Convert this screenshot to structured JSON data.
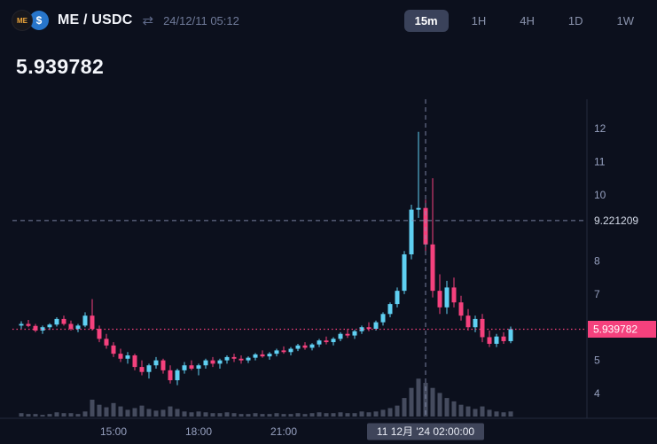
{
  "header": {
    "pair": "ME / USDC",
    "datetime": "24/12/11 05:12",
    "icons": {
      "me": "ME",
      "usdc": "$",
      "swap": "⇄"
    },
    "timeframes": {
      "selected": "15m",
      "items": [
        {
          "label": "15m",
          "active": true
        },
        {
          "label": "1H",
          "active": false
        },
        {
          "label": "4H",
          "active": false
        },
        {
          "label": "1D",
          "active": false
        },
        {
          "label": "1W",
          "active": false
        }
      ]
    }
  },
  "price": {
    "current": "5.939782"
  },
  "chart_data": {
    "type": "candlestick",
    "interval": "15m",
    "title": "ME / USDC 15m candlestick chart with volume",
    "colors": {
      "up": "#5fd0f2",
      "down": "#f5417d",
      "volume": "#454b5e",
      "axis_text": "#96a0bf",
      "crosshair": "#8b94b5",
      "grid_border": "#232a3d",
      "time_box_bg": "#3f455a"
    },
    "y_axis_range": [
      3.2,
      12.7
    ],
    "y_ticks": [
      {
        "value": 12,
        "label": "12"
      },
      {
        "value": 11,
        "label": "11"
      },
      {
        "value": 10,
        "label": "10"
      },
      {
        "value": 8,
        "label": "8"
      },
      {
        "value": 7,
        "label": "7"
      },
      {
        "value": 5,
        "label": "5"
      },
      {
        "value": 4,
        "label": "4"
      }
    ],
    "x_ticks": [
      {
        "index": 13,
        "label": "15:00"
      },
      {
        "index": 25,
        "label": "18:00"
      },
      {
        "index": 37,
        "label": "21:00"
      }
    ],
    "crosshair": {
      "price": 9.221209,
      "price_label": "9.221209",
      "candle_index": 57,
      "time_label": "11 12月 '24 02:00:00"
    },
    "last_price": {
      "value": 5.939782,
      "label": "5.939782"
    },
    "candles_format": [
      "open",
      "high",
      "low",
      "close",
      "volume"
    ],
    "candles": [
      [
        6.05,
        6.18,
        5.95,
        6.1,
        4
      ],
      [
        6.1,
        6.22,
        6.0,
        6.04,
        3
      ],
      [
        6.04,
        6.1,
        5.85,
        5.9,
        3
      ],
      [
        5.9,
        6.05,
        5.8,
        6.0,
        2
      ],
      [
        6.0,
        6.12,
        5.92,
        6.08,
        3
      ],
      [
        6.08,
        6.3,
        6.02,
        6.25,
        5
      ],
      [
        6.25,
        6.35,
        6.05,
        6.1,
        4
      ],
      [
        6.1,
        6.2,
        5.9,
        5.95,
        4
      ],
      [
        5.95,
        6.1,
        5.85,
        6.05,
        3
      ],
      [
        6.05,
        6.45,
        6.0,
        6.35,
        6
      ],
      [
        6.35,
        6.85,
        5.9,
        5.95,
        20
      ],
      [
        5.95,
        6.05,
        5.55,
        5.65,
        14
      ],
      [
        5.65,
        5.8,
        5.35,
        5.45,
        11
      ],
      [
        5.45,
        5.55,
        5.1,
        5.2,
        16
      ],
      [
        5.2,
        5.35,
        4.95,
        5.05,
        12
      ],
      [
        5.05,
        5.25,
        4.9,
        5.15,
        8
      ],
      [
        5.15,
        5.2,
        4.7,
        4.8,
        10
      ],
      [
        4.8,
        5.0,
        4.55,
        4.65,
        13
      ],
      [
        4.65,
        4.9,
        4.45,
        4.85,
        9
      ],
      [
        4.85,
        5.1,
        4.75,
        5.0,
        7
      ],
      [
        5.0,
        5.05,
        4.6,
        4.7,
        8
      ],
      [
        4.7,
        4.85,
        4.3,
        4.4,
        12
      ],
      [
        4.4,
        4.75,
        4.25,
        4.7,
        9
      ],
      [
        4.7,
        4.95,
        4.6,
        4.85,
        6
      ],
      [
        4.85,
        5.0,
        4.7,
        4.75,
        5
      ],
      [
        4.75,
        4.9,
        4.55,
        4.85,
        6
      ],
      [
        4.85,
        5.05,
        4.75,
        5.0,
        5
      ],
      [
        5.0,
        5.1,
        4.8,
        4.9,
        4
      ],
      [
        4.9,
        5.05,
        4.75,
        5.0,
        4
      ],
      [
        5.0,
        5.15,
        4.9,
        5.1,
        5
      ],
      [
        5.1,
        5.2,
        4.95,
        5.05,
        4
      ],
      [
        5.05,
        5.15,
        4.9,
        5.0,
        3
      ],
      [
        5.0,
        5.12,
        4.92,
        5.08,
        3
      ],
      [
        5.08,
        5.22,
        5.0,
        5.18,
        4
      ],
      [
        5.18,
        5.3,
        5.08,
        5.12,
        3
      ],
      [
        5.12,
        5.25,
        5.02,
        5.2,
        3
      ],
      [
        5.2,
        5.35,
        5.12,
        5.3,
        4
      ],
      [
        5.3,
        5.42,
        5.2,
        5.25,
        3
      ],
      [
        5.25,
        5.4,
        5.15,
        5.35,
        3
      ],
      [
        5.35,
        5.5,
        5.28,
        5.45,
        4
      ],
      [
        5.45,
        5.55,
        5.32,
        5.38,
        3
      ],
      [
        5.38,
        5.52,
        5.3,
        5.48,
        4
      ],
      [
        5.48,
        5.65,
        5.4,
        5.6,
        5
      ],
      [
        5.6,
        5.72,
        5.48,
        5.55,
        4
      ],
      [
        5.55,
        5.7,
        5.45,
        5.65,
        4
      ],
      [
        5.65,
        5.85,
        5.58,
        5.8,
        5
      ],
      [
        5.8,
        5.95,
        5.68,
        5.75,
        4
      ],
      [
        5.75,
        5.92,
        5.65,
        5.88,
        4
      ],
      [
        5.88,
        6.05,
        5.8,
        6.0,
        6
      ],
      [
        6.0,
        6.15,
        5.88,
        5.95,
        5
      ],
      [
        5.95,
        6.2,
        5.9,
        6.15,
        6
      ],
      [
        6.15,
        6.45,
        6.05,
        6.4,
        8
      ],
      [
        6.4,
        6.75,
        6.3,
        6.7,
        10
      ],
      [
        6.7,
        7.2,
        6.6,
        7.1,
        13
      ],
      [
        7.1,
        8.3,
        7.0,
        8.2,
        22
      ],
      [
        8.2,
        9.7,
        8.05,
        9.55,
        34
      ],
      [
        9.55,
        11.9,
        9.3,
        9.6,
        45
      ],
      [
        9.6,
        9.85,
        8.3,
        8.5,
        40
      ],
      [
        8.5,
        10.5,
        6.9,
        7.1,
        34
      ],
      [
        7.1,
        7.6,
        6.4,
        6.6,
        28
      ],
      [
        6.6,
        7.4,
        6.4,
        7.2,
        22
      ],
      [
        7.2,
        7.5,
        6.6,
        6.75,
        18
      ],
      [
        6.75,
        6.95,
        6.2,
        6.35,
        14
      ],
      [
        6.35,
        6.55,
        5.9,
        6.0,
        12
      ],
      [
        6.0,
        6.35,
        5.85,
        6.25,
        9
      ],
      [
        6.25,
        6.4,
        5.55,
        5.7,
        12
      ],
      [
        5.7,
        5.9,
        5.4,
        5.5,
        8
      ],
      [
        5.5,
        5.8,
        5.4,
        5.72,
        6
      ],
      [
        5.72,
        5.85,
        5.5,
        5.58,
        5
      ],
      [
        5.58,
        6.02,
        5.52,
        5.94,
        6
      ]
    ]
  }
}
